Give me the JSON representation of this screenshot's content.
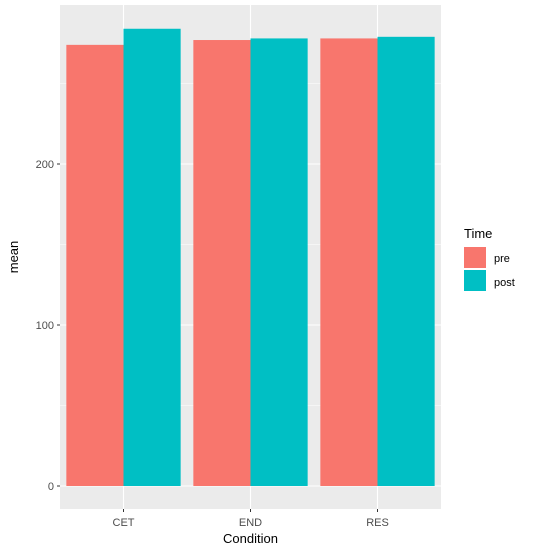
{
  "chart_data": {
    "type": "bar",
    "xlabel": "Condition",
    "ylabel": "mean",
    "categories": [
      "CET",
      "END",
      "RES"
    ],
    "series": [
      {
        "name": "pre",
        "values": [
          274,
          277,
          278
        ]
      },
      {
        "name": "post",
        "values": [
          284,
          278,
          279
        ]
      }
    ],
    "ylim": [
      0,
      297
    ],
    "yticks": [
      0,
      100,
      200
    ],
    "legend": {
      "title": "Time",
      "position": "right",
      "entries": [
        "pre",
        "post"
      ]
    },
    "grid": true,
    "panel_background": "#ebebeb",
    "colors": {
      "pre": "#f8766d",
      "post": "#00bfc4",
      "grid": "#ffffff"
    }
  }
}
